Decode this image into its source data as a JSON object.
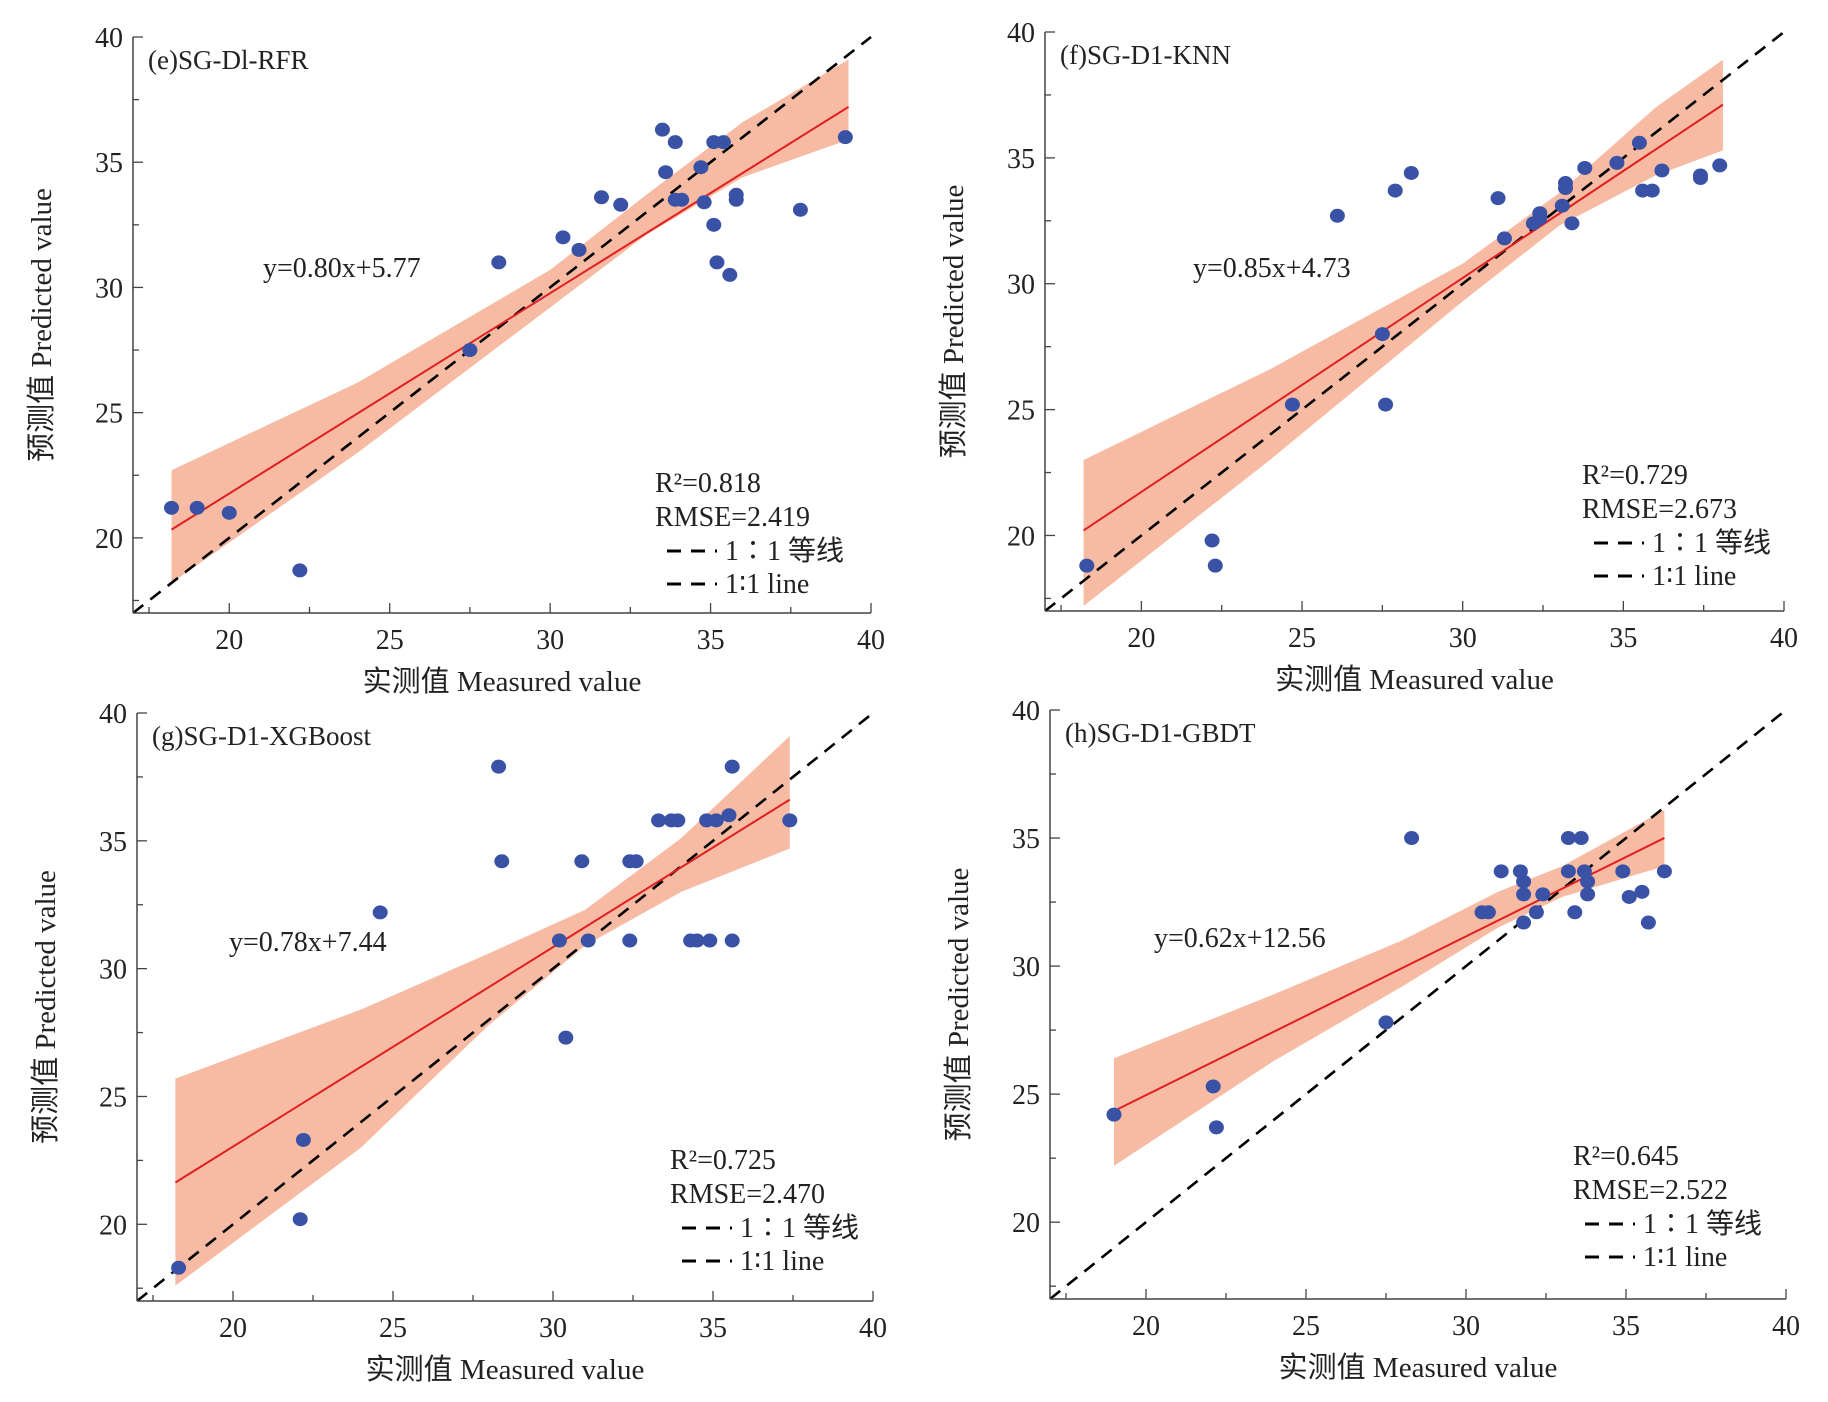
{
  "chart_data": [
    {
      "type": "scatter",
      "panel_label": "(e)SG-Dl-RFR",
      "xlabel": "实测值 Measured value",
      "ylabel": "预测值 Predicted value",
      "xlim": [
        17,
        40
      ],
      "ylim": [
        17,
        40
      ],
      "xticks": [
        "20",
        "25",
        "30",
        "35",
        "40"
      ],
      "yticks": [
        "20",
        "25",
        "30",
        "35",
        "40"
      ],
      "equation": "y=0.80x+5.77",
      "fit": {
        "slope": 0.8,
        "intercept": 5.77,
        "x_range": [
          18.2,
          39.3
        ]
      },
      "confidence_band": [
        [
          18.2,
          18.2,
          22.7
        ],
        [
          24,
          23.4,
          26.2
        ],
        [
          30,
          29.2,
          30.7
        ],
        [
          33,
          32.1,
          33.7
        ],
        [
          36,
          34.4,
          36.6
        ],
        [
          39.3,
          35.9,
          39.1
        ]
      ],
      "r2": "R²=0.818",
      "rmse": "RMSE=2.419",
      "legend": [
        "1∶1 等线",
        "1∶1 line"
      ],
      "points": [
        [
          18.2,
          21.2
        ],
        [
          19,
          21.2
        ],
        [
          20,
          21
        ],
        [
          22.2,
          18.7
        ],
        [
          27.5,
          27.5
        ],
        [
          28.4,
          31
        ],
        [
          30.4,
          32
        ],
        [
          30.9,
          31.5
        ],
        [
          31.6,
          33.6
        ],
        [
          32.2,
          33.3
        ],
        [
          33.5,
          36.3
        ],
        [
          33.6,
          34.6
        ],
        [
          33.9,
          35.8
        ],
        [
          33.9,
          33.5
        ],
        [
          34.1,
          33.5
        ],
        [
          34.7,
          34.8
        ],
        [
          34.8,
          33.4
        ],
        [
          35.1,
          35.8
        ],
        [
          35.4,
          35.8
        ],
        [
          35.1,
          32.5
        ],
        [
          35.2,
          31
        ],
        [
          35.6,
          30.5
        ],
        [
          35.8,
          33.7
        ],
        [
          35.8,
          33.5
        ],
        [
          37.8,
          33.1
        ],
        [
          39.2,
          36
        ]
      ]
    },
    {
      "type": "scatter",
      "panel_label": "(f)SG-D1-KNN",
      "xlabel": "实测值 Measured value",
      "ylabel": "预测值 Predicted value",
      "xlim": [
        17,
        40
      ],
      "ylim": [
        17,
        40
      ],
      "xticks": [
        "20",
        "25",
        "30",
        "35",
        "40"
      ],
      "yticks": [
        "20",
        "25",
        "30",
        "35",
        "40"
      ],
      "equation": "y=0.85x+4.73",
      "fit": {
        "slope": 0.85,
        "intercept": 4.73,
        "x_range": [
          18.2,
          38.1
        ]
      },
      "confidence_band": [
        [
          18.2,
          17.2,
          23.0
        ],
        [
          24,
          23.0,
          26.6
        ],
        [
          30,
          29.3,
          30.8
        ],
        [
          33,
          32.3,
          33.6
        ],
        [
          36,
          34.3,
          37.0
        ],
        [
          38.1,
          35.3,
          38.9
        ]
      ],
      "r2": "R²=0.729",
      "rmse": "RMSE=2.673",
      "legend": [
        "1∶1 等线",
        "1∶1 line"
      ],
      "points": [
        [
          18.3,
          18.8
        ],
        [
          22.2,
          19.8
        ],
        [
          22.3,
          18.8
        ],
        [
          24.7,
          25.2
        ],
        [
          26.1,
          32.7
        ],
        [
          27.5,
          28
        ],
        [
          27.6,
          25.2
        ],
        [
          27.9,
          33.7
        ],
        [
          28.4,
          34.4
        ],
        [
          31.1,
          33.4
        ],
        [
          31.3,
          31.8
        ],
        [
          32.2,
          32.4
        ],
        [
          32.4,
          32.8
        ],
        [
          32.4,
          32.6
        ],
        [
          33.1,
          33.1
        ],
        [
          33.2,
          34
        ],
        [
          33.2,
          33.8
        ],
        [
          33.4,
          32.4
        ],
        [
          33.8,
          34.6
        ],
        [
          34.8,
          34.8
        ],
        [
          35.5,
          35.6
        ],
        [
          35.6,
          33.7
        ],
        [
          35.9,
          33.7
        ],
        [
          36.2,
          34.5
        ],
        [
          37.4,
          34.3
        ],
        [
          37.4,
          34.2
        ],
        [
          38,
          34.7
        ]
      ]
    },
    {
      "type": "scatter",
      "panel_label": "(g)SG-D1-XGBoost",
      "xlabel": "实测值 Measured value",
      "ylabel": "预测值 Predicted value",
      "xlim": [
        17,
        40
      ],
      "ylim": [
        17,
        40
      ],
      "xticks": [
        "20",
        "25",
        "30",
        "35",
        "40"
      ],
      "yticks": [
        "20",
        "25",
        "30",
        "35",
        "40"
      ],
      "equation": "y=0.78x+7.44",
      "fit": {
        "slope": 0.78,
        "intercept": 7.44,
        "x_range": [
          18.2,
          37.4
        ]
      },
      "confidence_band": [
        [
          18.2,
          17.6,
          25.7
        ],
        [
          24,
          23.0,
          28.4
        ],
        [
          28,
          27.8,
          30.6
        ],
        [
          31,
          30.9,
          32.3
        ],
        [
          34,
          33.0,
          35.1
        ],
        [
          37.4,
          34.7,
          39.1
        ]
      ],
      "r2": "R²=0.725",
      "rmse": "RMSE=2.470",
      "legend": [
        "1∶1 等线",
        "1∶1 line"
      ],
      "points": [
        [
          18.3,
          18.3
        ],
        [
          22.2,
          23.3
        ],
        [
          22.1,
          20.2
        ],
        [
          24.6,
          32.2
        ],
        [
          28.3,
          37.9
        ],
        [
          28.4,
          34.2
        ],
        [
          30.2,
          31.1
        ],
        [
          30.4,
          27.3
        ],
        [
          30.9,
          34.2
        ],
        [
          31.1,
          31.1
        ],
        [
          32.4,
          34.2
        ],
        [
          32.6,
          34.2
        ],
        [
          32.4,
          31.1
        ],
        [
          33.3,
          35.8
        ],
        [
          33.7,
          35.8
        ],
        [
          33.9,
          35.8
        ],
        [
          34.3,
          31.1
        ],
        [
          34.5,
          31.1
        ],
        [
          34.9,
          31.1
        ],
        [
          34.8,
          35.8
        ],
        [
          35.1,
          35.8
        ],
        [
          35.5,
          36
        ],
        [
          35.6,
          37.9
        ],
        [
          35.6,
          31.1
        ],
        [
          37.4,
          35.8
        ]
      ]
    },
    {
      "type": "scatter",
      "panel_label": "(h)SG-D1-GBDT",
      "xlabel": "实测值 Measured value",
      "ylabel": "预测值 Predicted value",
      "xlim": [
        17,
        40
      ],
      "ylim": [
        17,
        40
      ],
      "xticks": [
        "20",
        "25",
        "30",
        "35",
        "40"
      ],
      "yticks": [
        "20",
        "25",
        "30",
        "35",
        "40"
      ],
      "equation": "y=0.62x+12.56",
      "fit": {
        "slope": 0.62,
        "intercept": 12.56,
        "x_range": [
          19,
          36.2
        ]
      },
      "confidence_band": [
        [
          19,
          22.2,
          26.4
        ],
        [
          24,
          26.3,
          28.9
        ],
        [
          28,
          29.2,
          31.0
        ],
        [
          31,
          31.5,
          32.9
        ],
        [
          33,
          32.7,
          33.9
        ],
        [
          36.2,
          33.9,
          36.1
        ]
      ],
      "r2": "R²=0.645",
      "rmse": "RMSE=2.522",
      "legend": [
        "1∶1 等线",
        "1∶1 line"
      ],
      "points": [
        [
          19,
          24.2
        ],
        [
          22.1,
          25.3
        ],
        [
          22.2,
          23.7
        ],
        [
          27.5,
          27.8
        ],
        [
          28.3,
          35
        ],
        [
          30.5,
          32.1
        ],
        [
          30.7,
          32.1
        ],
        [
          31.1,
          33.7
        ],
        [
          31.7,
          33.7
        ],
        [
          31.8,
          33.3
        ],
        [
          31.8,
          32.8
        ],
        [
          31.8,
          31.7
        ],
        [
          32.2,
          32.1
        ],
        [
          32.4,
          32.8
        ],
        [
          33.2,
          35
        ],
        [
          33.6,
          35
        ],
        [
          33.2,
          33.7
        ],
        [
          33.7,
          33.7
        ],
        [
          33.4,
          32.1
        ],
        [
          33.8,
          33.3
        ],
        [
          33.8,
          32.8
        ],
        [
          34.9,
          33.7
        ],
        [
          35.1,
          32.7
        ],
        [
          35.5,
          32.9
        ],
        [
          35.7,
          31.7
        ],
        [
          36.2,
          33.7
        ]
      ]
    }
  ],
  "colors": {
    "points": "#3a52a6",
    "fit_line": "#e02020",
    "band": "#f7bba4",
    "identity_line": "#000000",
    "axes": "#444444"
  }
}
